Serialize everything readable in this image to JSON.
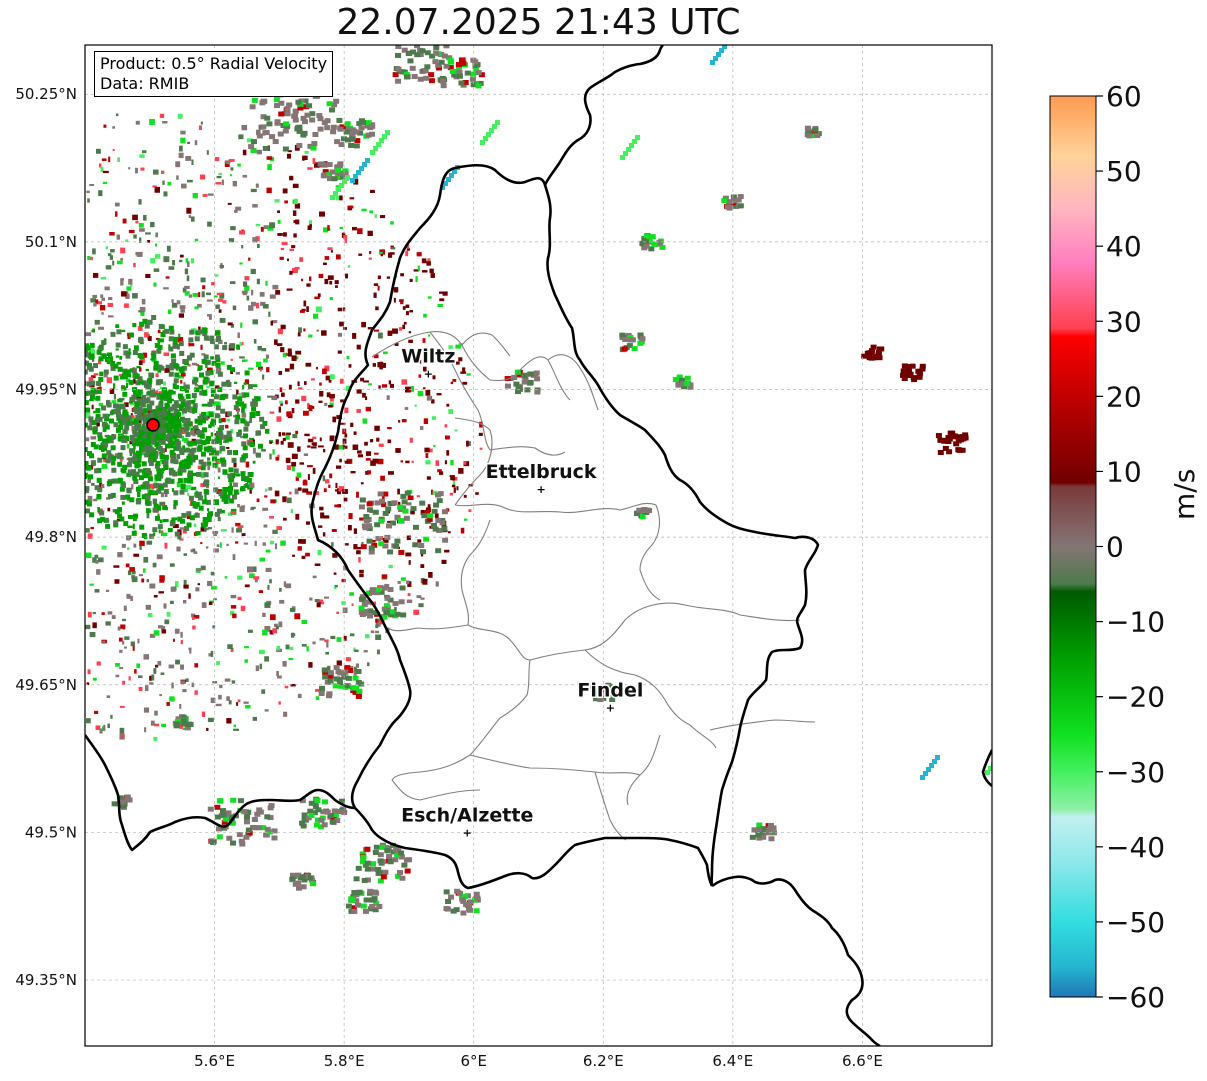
{
  "title": "22.07.2025 21:43 UTC",
  "info": {
    "product": "Product: 0.5° Radial Velocity",
    "data": "Data: RMIB"
  },
  "map_extent": {
    "lon_min": 5.4,
    "lon_max": 6.8,
    "lat_min": 49.283,
    "lat_max": 50.3
  },
  "lon_ticks": [
    {
      "value": 5.6,
      "label": "5.6°E"
    },
    {
      "value": 5.8,
      "label": "5.8°E"
    },
    {
      "value": 6.0,
      "label": "6°E"
    },
    {
      "value": 6.2,
      "label": "6.2°E"
    },
    {
      "value": 6.4,
      "label": "6.4°E"
    },
    {
      "value": 6.6,
      "label": "6.6°E"
    }
  ],
  "lat_ticks": [
    {
      "value": 50.25,
      "label": "50.25°N"
    },
    {
      "value": 50.1,
      "label": "50.1°N"
    },
    {
      "value": 49.95,
      "label": "49.95°N"
    },
    {
      "value": 49.8,
      "label": "49.8°N"
    },
    {
      "value": 49.65,
      "label": "49.65°N"
    },
    {
      "value": 49.5,
      "label": "49.5°N"
    },
    {
      "value": 49.35,
      "label": "49.35°N"
    }
  ],
  "cities": [
    {
      "name": "Wiltz",
      "lon": 5.93,
      "lat": 49.966
    },
    {
      "name": "Ettelbruck",
      "lon": 6.104,
      "lat": 49.849
    },
    {
      "name": "Findel",
      "lon": 6.211,
      "lat": 49.627
    },
    {
      "name": "Esch/Alzette",
      "lon": 5.99,
      "lat": 49.5
    }
  ],
  "radar_site": {
    "lon": 5.505,
    "lat": 49.914
  },
  "colorbar": {
    "label": "m/s",
    "min": -60,
    "max": 60,
    "ticks": [
      "60",
      "50",
      "40",
      "30",
      "20",
      "10",
      "0",
      "−10",
      "−20",
      "−30",
      "−40",
      "−50",
      "−60"
    ],
    "stops": [
      {
        "v": -60,
        "c": "#1f77b4"
      },
      {
        "v": -56,
        "c": "#25b5d0"
      },
      {
        "v": -50,
        "c": "#33dde0"
      },
      {
        "v": -42,
        "c": "#8ee8ea"
      },
      {
        "v": -36,
        "c": "#c2f0f0"
      },
      {
        "v": -35,
        "c": "#8ff0a8"
      },
      {
        "v": -30,
        "c": "#44f060"
      },
      {
        "v": -25,
        "c": "#10e020"
      },
      {
        "v": -15,
        "c": "#00a000"
      },
      {
        "v": -6,
        "c": "#005a00"
      },
      {
        "v": -5,
        "c": "#4d7a4d"
      },
      {
        "v": 0,
        "c": "#857575"
      },
      {
        "v": 8,
        "c": "#7a3a3a"
      },
      {
        "v": 8.5,
        "c": "#700000"
      },
      {
        "v": 20,
        "c": "#c00000"
      },
      {
        "v": 28,
        "c": "#ff0000"
      },
      {
        "v": 29,
        "c": "#ff4050"
      },
      {
        "v": 38,
        "c": "#ff80c0"
      },
      {
        "v": 45,
        "c": "#ffb6c1"
      },
      {
        "v": 52,
        "c": "#ffd39a"
      },
      {
        "v": 60,
        "c": "#ff9a50"
      }
    ]
  },
  "colors": {
    "border": "#000000",
    "canton": "#808080",
    "grid": "#b5b5b5",
    "radar_marker": "#ff0000"
  }
}
